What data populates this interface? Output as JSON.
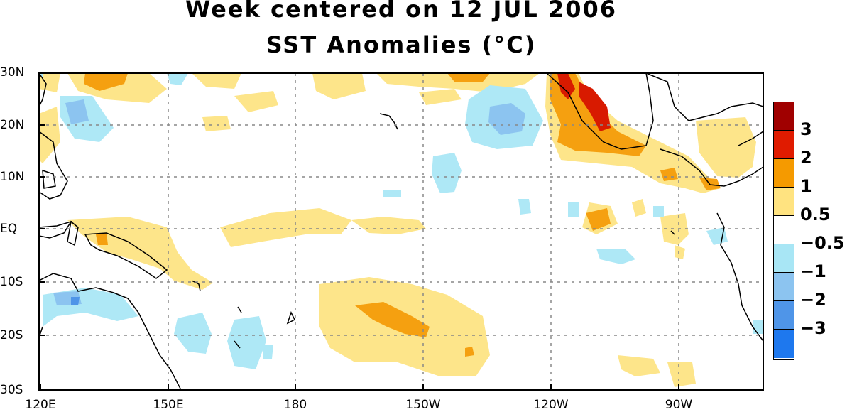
{
  "title_line1": "Week centered on 12 JUL 2006",
  "title_line2": "SST Anomalies (°C)",
  "lat_labels": [
    "30N",
    "20N",
    "10N",
    "EQ",
    "10S",
    "20S",
    "30S"
  ],
  "lon_labels": [
    "120E",
    "150E",
    "180",
    "150W",
    "120W",
    "90W"
  ],
  "colorbar": {
    "labels": [
      "3",
      "2",
      "1",
      "0.5",
      "−0.5",
      "−1",
      "−2",
      "−3"
    ],
    "colors": [
      "#a00000",
      "#e01b00",
      "#f59a00",
      "#ffe380",
      "#ffffff",
      "#a8e6f5",
      "#8cc4f0",
      "#4f95e8",
      "#1e78ee"
    ]
  },
  "palette": {
    "warm_light": "#fde58a",
    "warm_mid": "#f5a010",
    "warm_strong": "#d81a00",
    "warm_extreme": "#b00000",
    "cool_light": "#aee8f6",
    "cool_mid": "#8cc4f0",
    "cool_strong": "#4f95e8"
  }
}
